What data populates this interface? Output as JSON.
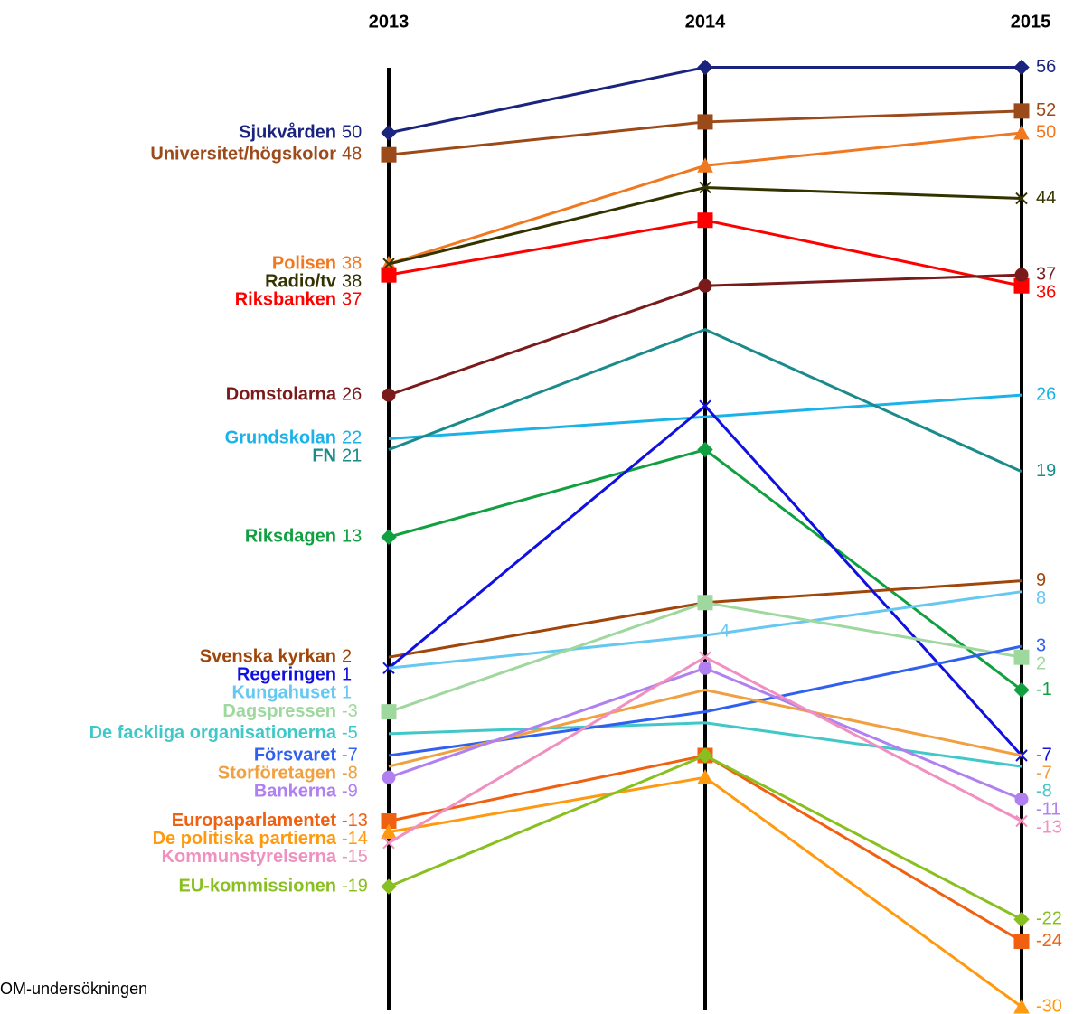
{
  "chart_data": {
    "type": "slope",
    "source": "OM-undersökningen",
    "categories": [
      "2013",
      "2014",
      "2015"
    ],
    "ylim": [
      -30,
      56
    ],
    "series": [
      {
        "name": "Sjukvården",
        "color": "#1a237e",
        "marker": "diamond",
        "values": [
          50,
          56,
          56
        ],
        "value_labels": [
          "50",
          null,
          "56"
        ]
      },
      {
        "name": "Universitet/högskolor",
        "color": "#9c4a1a",
        "marker": "square",
        "values": [
          48,
          51,
          52
        ],
        "value_labels": [
          "48",
          null,
          "52"
        ]
      },
      {
        "name": "Polisen",
        "color": "#f07820",
        "marker": "triangle",
        "values": [
          38,
          47,
          50
        ],
        "value_labels": [
          "38",
          null,
          "50"
        ]
      },
      {
        "name": "Radio/tv",
        "color": "#333300",
        "marker": "x",
        "values": [
          38,
          45,
          44
        ],
        "value_labels": [
          "38",
          null,
          "44"
        ]
      },
      {
        "name": "Riksbanken",
        "color": "#ff0000",
        "marker": "square",
        "values": [
          37,
          42,
          36
        ],
        "value_labels": [
          "37",
          null,
          "36"
        ]
      },
      {
        "name": "Domstolarna",
        "color": "#7b1a1a",
        "marker": "circle",
        "values": [
          26,
          36,
          37
        ],
        "value_labels": [
          "26",
          null,
          "37"
        ]
      },
      {
        "name": "Grundskolan",
        "color": "#1ab2e8",
        "marker": "none",
        "values": [
          22,
          24,
          26
        ],
        "value_labels": [
          "22",
          null,
          "26"
        ]
      },
      {
        "name": "FN",
        "color": "#1a8a8a",
        "marker": "none",
        "values": [
          21,
          32,
          19
        ],
        "value_labels": [
          "21",
          null,
          "19"
        ]
      },
      {
        "name": "Riksdagen",
        "color": "#10a040",
        "marker": "diamond",
        "values": [
          13,
          21,
          -1
        ],
        "value_labels": [
          "13",
          null,
          "-1"
        ]
      },
      {
        "name": "Svenska kyrkan",
        "color": "#a0460a",
        "marker": "none",
        "values": [
          2,
          7,
          9
        ],
        "value_labels": [
          "2",
          null,
          "9"
        ]
      },
      {
        "name": "Regeringen",
        "color": "#1010e0",
        "marker": "x",
        "values": [
          1,
          25,
          -7
        ],
        "value_labels": [
          "1",
          null,
          "-7"
        ]
      },
      {
        "name": "Kungahuset",
        "color": "#66c8f0",
        "marker": "none",
        "values": [
          1,
          4,
          8
        ],
        "value_labels": [
          "1",
          "4",
          "8"
        ]
      },
      {
        "name": "Dagspressen",
        "color": "#9fd89f",
        "marker": "square",
        "values": [
          -3,
          7,
          2
        ],
        "value_labels": [
          "-3",
          null,
          "2"
        ]
      },
      {
        "name": "De fackliga organisationerna",
        "color": "#40c8c8",
        "marker": "none",
        "values": [
          -5,
          -4,
          -8
        ],
        "value_labels": [
          "-5",
          null,
          "-8"
        ]
      },
      {
        "name": "Försvaret",
        "color": "#3060f0",
        "marker": "none",
        "values": [
          -7,
          -3,
          3
        ],
        "value_labels": [
          "-7",
          null,
          "3"
        ]
      },
      {
        "name": "Storföretagen",
        "color": "#f0a040",
        "marker": "none",
        "values": [
          -8,
          -1,
          -7
        ],
        "value_labels": [
          "-8",
          null,
          "-7"
        ]
      },
      {
        "name": "Bankerna",
        "color": "#b080f0",
        "marker": "circle",
        "values": [
          -9,
          1,
          -11
        ],
        "value_labels": [
          "-9",
          null,
          "-11"
        ]
      },
      {
        "name": "Europaparlamentet",
        "color": "#f06010",
        "marker": "square",
        "values": [
          -13,
          -7,
          -24
        ],
        "value_labels": [
          "-13",
          null,
          "-24"
        ]
      },
      {
        "name": "De politiska partierna",
        "color": "#ff9a10",
        "marker": "triangle",
        "values": [
          -14,
          -9,
          -30
        ],
        "value_labels": [
          "-14",
          null,
          "-30"
        ]
      },
      {
        "name": "Kommunstyrelserna",
        "color": "#f090c0",
        "marker": "x",
        "values": [
          -15,
          2,
          -13
        ],
        "value_labels": [
          "-15",
          null,
          "-13"
        ]
      },
      {
        "name": "EU-kommissionen",
        "color": "#88c020",
        "marker": "diamond",
        "values": [
          -19,
          -7,
          -22
        ],
        "value_labels": [
          "-19",
          null,
          "-22"
        ]
      }
    ]
  }
}
